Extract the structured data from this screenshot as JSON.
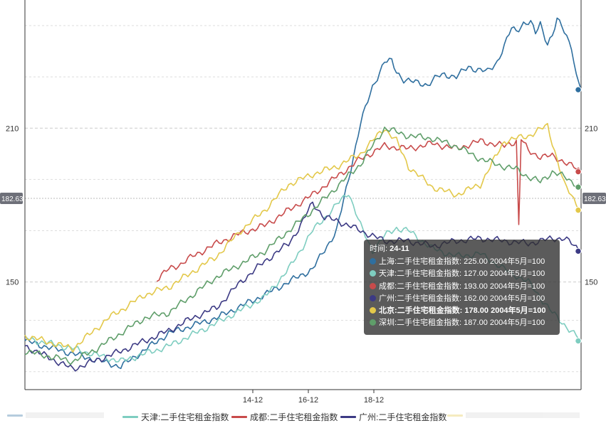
{
  "chart_data": {
    "type": "line",
    "x_ticks": [
      "14-12",
      "16-12",
      "18-12"
    ],
    "y_ticks": [
      150,
      210
    ],
    "ylim": [
      108,
      260
    ],
    "pointer_value": "182.63",
    "grid": true,
    "legend_position": "bottom",
    "series": [
      {
        "name": "上海:二手住宅租金指数",
        "color": "#2f6f9f",
        "points": [
          [
            0,
            127
          ],
          [
            40,
            117
          ],
          [
            60,
            130
          ],
          [
            80,
            136
          ],
          [
            100,
            145
          ],
          [
            120,
            155
          ],
          [
            130,
            170
          ],
          [
            135,
            190
          ],
          [
            140,
            212
          ],
          [
            145,
            226
          ],
          [
            150,
            236
          ],
          [
            153,
            236
          ],
          [
            155,
            232
          ],
          [
            158,
            229
          ],
          [
            162,
            228
          ],
          [
            168,
            227
          ],
          [
            172,
            230
          ],
          [
            175,
            231
          ],
          [
            180,
            230
          ],
          [
            185,
            234
          ],
          [
            188,
            233
          ],
          [
            193,
            232
          ],
          [
            197,
            236
          ],
          [
            200,
            242
          ],
          [
            203,
            249
          ],
          [
            205,
            248
          ],
          [
            208,
            251
          ],
          [
            211,
            251
          ],
          [
            213,
            247
          ],
          [
            215,
            251
          ],
          [
            218,
            243
          ],
          [
            220,
            246
          ],
          [
            222,
            252
          ],
          [
            224,
            250
          ],
          [
            228,
            242
          ],
          [
            230,
            230
          ],
          [
            232,
            225
          ]
        ]
      },
      {
        "name": "天津:二手住宅租金指数",
        "color": "#7ecdc0",
        "points": [
          [
            0,
            128
          ],
          [
            20,
            124
          ],
          [
            40,
            119
          ],
          [
            60,
            125
          ],
          [
            80,
            134
          ],
          [
            100,
            144
          ],
          [
            110,
            155
          ],
          [
            120,
            170
          ],
          [
            130,
            180
          ],
          [
            135,
            185
          ],
          [
            140,
            172
          ],
          [
            145,
            162
          ],
          [
            150,
            168
          ],
          [
            155,
            171
          ],
          [
            160,
            170
          ],
          [
            170,
            163
          ],
          [
            180,
            160
          ],
          [
            190,
            161
          ],
          [
            200,
            155
          ],
          [
            210,
            150
          ],
          [
            220,
            138
          ],
          [
            232,
            127
          ]
        ]
      },
      {
        "name": "成都:二手住宅租金指数",
        "color": "#c84b4b",
        "points": [
          [
            55,
            151
          ],
          [
            60,
            155
          ],
          [
            65,
            157
          ],
          [
            70,
            160
          ],
          [
            80,
            165
          ],
          [
            90,
            169
          ],
          [
            100,
            172
          ],
          [
            110,
            178
          ],
          [
            120,
            184
          ],
          [
            130,
            191
          ],
          [
            140,
            198
          ],
          [
            150,
            203
          ],
          [
            160,
            202
          ],
          [
            170,
            204
          ],
          [
            180,
            202
          ],
          [
            190,
            205
          ],
          [
            200,
            203
          ],
          [
            205,
            205
          ],
          [
            206,
            172
          ],
          [
            207,
            206
          ],
          [
            210,
            201
          ],
          [
            215,
            199
          ],
          [
            220,
            199
          ],
          [
            225,
            197
          ],
          [
            232,
            193
          ]
        ]
      },
      {
        "name": "广州:二手住宅租金指数",
        "color": "#3c3a84",
        "points": [
          [
            0,
            125
          ],
          [
            20,
            116
          ],
          [
            40,
            123
          ],
          [
            60,
            131
          ],
          [
            70,
            136
          ],
          [
            80,
            140
          ],
          [
            90,
            150
          ],
          [
            100,
            158
          ],
          [
            110,
            165
          ],
          [
            115,
            172
          ],
          [
            120,
            181
          ],
          [
            125,
            175
          ],
          [
            130,
            174
          ],
          [
            140,
            170
          ],
          [
            150,
            166
          ],
          [
            160,
            166
          ],
          [
            170,
            164
          ],
          [
            180,
            166
          ],
          [
            190,
            167
          ],
          [
            200,
            166
          ],
          [
            210,
            165
          ],
          [
            220,
            167
          ],
          [
            225,
            167
          ],
          [
            228,
            165
          ],
          [
            232,
            162
          ]
        ]
      },
      {
        "name": "北京:二手住宅租金指数",
        "color": "#e3c84a",
        "points": [
          [
            0,
            129
          ],
          [
            20,
            124
          ],
          [
            35,
            136
          ],
          [
            50,
            145
          ],
          [
            60,
            148
          ],
          [
            80,
            160
          ],
          [
            90,
            170
          ],
          [
            100,
            178
          ],
          [
            110,
            188
          ],
          [
            120,
            192
          ],
          [
            130,
            195
          ],
          [
            140,
            200
          ],
          [
            150,
            210
          ],
          [
            155,
            205
          ],
          [
            160,
            195
          ],
          [
            170,
            187
          ],
          [
            180,
            184
          ],
          [
            190,
            188
          ],
          [
            200,
            205
          ],
          [
            210,
            207
          ],
          [
            218,
            211
          ],
          [
            225,
            188
          ],
          [
            232,
            178
          ]
        ]
      },
      {
        "name": "深圳:二手住宅租金指数",
        "color": "#5f9e6a",
        "points": [
          [
            0,
            123
          ],
          [
            20,
            119
          ],
          [
            30,
            124
          ],
          [
            50,
            136
          ],
          [
            60,
            138
          ],
          [
            80,
            152
          ],
          [
            100,
            162
          ],
          [
            110,
            170
          ],
          [
            120,
            178
          ],
          [
            130,
            187
          ],
          [
            140,
            196
          ],
          [
            150,
            210
          ],
          [
            160,
            207
          ],
          [
            170,
            206
          ],
          [
            180,
            203
          ],
          [
            190,
            198
          ],
          [
            200,
            195
          ],
          [
            205,
            194
          ],
          [
            210,
            191
          ],
          [
            215,
            189
          ],
          [
            220,
            193
          ],
          [
            225,
            191
          ],
          [
            232,
            187
          ]
        ]
      }
    ]
  },
  "tooltip": {
    "time_label": "时间:",
    "time_value": "24-11",
    "rows": [
      {
        "text": "上海:二手住宅租金指数: 225.00  2004年5月=100",
        "color": "#2f6f9f",
        "bold": false
      },
      {
        "text": "天津:二手住宅租金指数: 127.00  2004年5月=100",
        "color": "#7ecdc0",
        "bold": false
      },
      {
        "text": "成都:二手住宅租金指数: 193.00  2004年5月=100",
        "color": "#c84b4b",
        "bold": false
      },
      {
        "text": "广州:二手住宅租金指数: 162.00  2004年5月=100",
        "color": "#3c3a84",
        "bold": false
      },
      {
        "text": "北京:二手住宅租金指数: 178.00  2004年5月=100",
        "color": "#e3c84a",
        "bold": true
      },
      {
        "text": "深圳:二手住宅租金指数: 187.00  2004年5月=100",
        "color": "#5f9e6a",
        "bold": false
      }
    ]
  },
  "legend": {
    "items": [
      {
        "label": "",
        "color": "#2f6f9f",
        "faded": true
      },
      {
        "label": "天津:二手住宅租金指数",
        "color": "#7ecdc0",
        "faded": false
      },
      {
        "label": "成都:二手住宅租金指数",
        "color": "#c84b4b",
        "faded": false
      },
      {
        "label": "广州:二手住宅租金指数",
        "color": "#3c3a84",
        "faded": false
      },
      {
        "label": "",
        "color": "#e3c84a",
        "faded": true
      }
    ]
  }
}
